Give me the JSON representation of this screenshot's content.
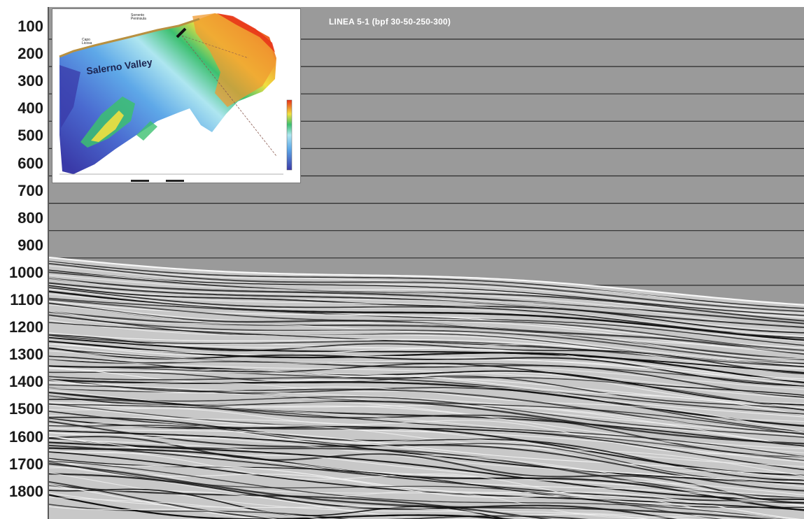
{
  "section": {
    "title": "LINEA 5-1 (bpf 30-50-250-300)",
    "axis_ticks": [
      "100",
      "200",
      "300",
      "400",
      "500",
      "600",
      "700",
      "800",
      "900",
      "1000",
      "1100",
      "1200",
      "1300",
      "1400",
      "1500",
      "1600",
      "1700",
      "1800"
    ]
  },
  "inset_map": {
    "main_label": "Salerno Valley",
    "peninsula_label_line1": "Sorrento",
    "peninsula_label_line2": "Peninsula",
    "cape_label_line1": "Capo",
    "cape_label_line2": "Licosa",
    "colors": {
      "deep": "#3a3aa8",
      "mid_deep": "#5ea8e8",
      "mid": "#aee6f0",
      "shallow": "#3cc070",
      "high": "#f0e040",
      "top": "#e83018"
    }
  },
  "colors": {
    "water_column": "#9a9a9a",
    "grid_line": "#2a2a2a",
    "reflector_dark": "#111111",
    "reflector_light": "#f4f4f4"
  }
}
